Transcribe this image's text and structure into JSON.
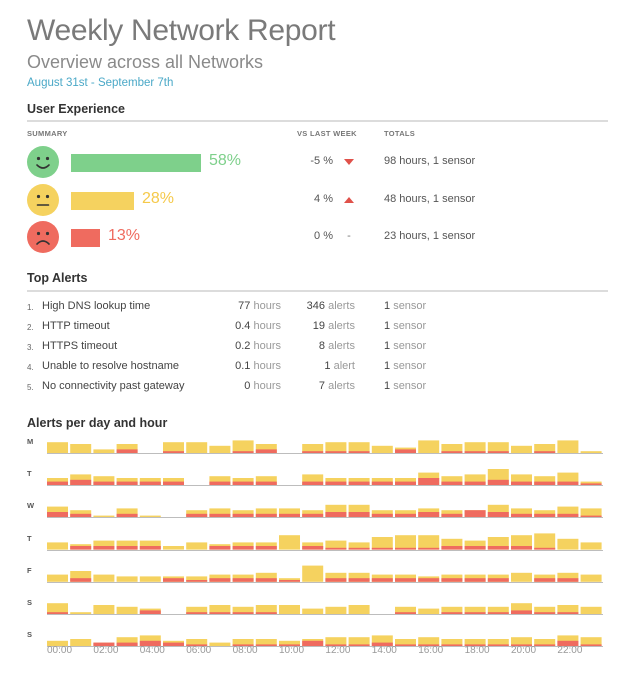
{
  "header": {
    "title": "Weekly Network Report",
    "subtitle": "Overview across all Networks",
    "date_range": "August 31st - September 7th"
  },
  "user_experience": {
    "section_title": "User Experience",
    "columns": {
      "summary": "SUMMARY",
      "vs_last_week": "VS LAST WEEK",
      "totals": "TOTALS"
    },
    "rows": [
      {
        "face": "happy-face-icon",
        "percent": 58,
        "percent_label": "58%",
        "color": "#7ed08b",
        "text_color": "#7ed08b",
        "change": "-5 %",
        "trend": "down",
        "totals": "98 hours, 1 sensor"
      },
      {
        "face": "neutral-face-icon",
        "percent": 28,
        "percent_label": "28%",
        "color": "#f5d25f",
        "text_color": "#f5c94a",
        "change": "4 %",
        "trend": "up",
        "totals": "48 hours, 1 sensor"
      },
      {
        "face": "sad-face-icon",
        "percent": 13,
        "percent_label": "13%",
        "color": "#ef6b5f",
        "text_color": "#ef6b5f",
        "change": "0 %",
        "trend": "flat",
        "trend_label": "-",
        "totals": "23 hours, 1 sensor"
      }
    ],
    "trend_colors": {
      "down": "#e0514a",
      "up": "#e0514a"
    }
  },
  "top_alerts": {
    "section_title": "Top Alerts",
    "rows": [
      {
        "num": "1.",
        "name": "High DNS lookup time",
        "hours_value": "77",
        "hours_unit": "hours",
        "alerts_value": "346",
        "alerts_unit": "alerts",
        "sensor_value": "1",
        "sensor_unit": "sensor"
      },
      {
        "num": "2.",
        "name": "HTTP timeout",
        "hours_value": "0.4",
        "hours_unit": "hours",
        "alerts_value": "19",
        "alerts_unit": "alerts",
        "sensor_value": "1",
        "sensor_unit": "sensor"
      },
      {
        "num": "3.",
        "name": "HTTPS timeout",
        "hours_value": "0.2",
        "hours_unit": "hours",
        "alerts_value": "8",
        "alerts_unit": "alerts",
        "sensor_value": "1",
        "sensor_unit": "sensor"
      },
      {
        "num": "4.",
        "name": "Unable to resolve hostname",
        "hours_value": "0.1",
        "hours_unit": "hours",
        "alerts_value": "1",
        "alerts_unit": "alert",
        "sensor_value": "1",
        "sensor_unit": "sensor"
      },
      {
        "num": "5.",
        "name": "No connectivity past gateway",
        "hours_value": "0",
        "hours_unit": "hours",
        "alerts_value": "7",
        "alerts_unit": "alerts",
        "sensor_value": "1",
        "sensor_unit": "sensor"
      }
    ]
  },
  "alerts_chart": {
    "section_title": "Alerts per day and hour",
    "colors": {
      "yellow": "#f5d25f",
      "red": "#ef6b5f",
      "baseline": "#bdbdbd"
    },
    "hour_labels": [
      "00:00",
      "02:00",
      "04:00",
      "06:00",
      "08:00",
      "10:00",
      "12:00",
      "14:00",
      "16:00",
      "18:00",
      "20:00",
      "22:00"
    ]
  },
  "chart_data": {
    "type": "bar",
    "title": "Alerts per day and hour",
    "x": [
      "00:00",
      "01:00",
      "02:00",
      "03:00",
      "04:00",
      "05:00",
      "06:00",
      "07:00",
      "08:00",
      "09:00",
      "10:00",
      "11:00",
      "12:00",
      "13:00",
      "14:00",
      "15:00",
      "16:00",
      "17:00",
      "18:00",
      "19:00",
      "20:00",
      "21:00",
      "22:00",
      "23:00"
    ],
    "days": [
      "M",
      "T",
      "W",
      "T",
      "F",
      "S",
      "S"
    ],
    "series_note": "each cell: total alerts (yellow) and red portion, relative scale 0-10",
    "grid": false,
    "ylim": [
      0,
      10
    ],
    "rows": [
      {
        "day": "M",
        "total": [
          6,
          5,
          2,
          5,
          0,
          6,
          6,
          4,
          7,
          5,
          0,
          5,
          6,
          6,
          4,
          3,
          7,
          5,
          6,
          6,
          4,
          5,
          7,
          1
        ],
        "red": [
          0,
          0,
          0,
          2,
          0,
          1,
          0,
          0,
          1,
          2,
          0,
          1,
          1,
          1,
          0,
          2,
          0,
          1,
          1,
          1,
          0,
          1,
          0,
          0
        ]
      },
      {
        "day": "T",
        "total": [
          4,
          6,
          5,
          4,
          4,
          4,
          0,
          5,
          4,
          5,
          0,
          6,
          4,
          4,
          4,
          4,
          7,
          5,
          6,
          9,
          6,
          5,
          7,
          2
        ],
        "red": [
          2,
          3,
          2,
          2,
          2,
          2,
          0,
          2,
          2,
          2,
          0,
          2,
          2,
          2,
          2,
          2,
          4,
          2,
          2,
          3,
          2,
          2,
          2,
          1
        ]
      },
      {
        "day": "W",
        "total": [
          6,
          4,
          1,
          5,
          1,
          0,
          4,
          5,
          4,
          5,
          5,
          4,
          7,
          7,
          4,
          4,
          5,
          4,
          4,
          7,
          5,
          4,
          6,
          5
        ],
        "red": [
          3,
          2,
          0,
          2,
          0,
          0,
          2,
          2,
          2,
          2,
          2,
          2,
          3,
          3,
          2,
          2,
          3,
          2,
          4,
          3,
          2,
          2,
          2,
          1
        ]
      },
      {
        "day": "T",
        "total": [
          4,
          3,
          5,
          5,
          5,
          2,
          4,
          3,
          4,
          4,
          8,
          4,
          5,
          4,
          7,
          8,
          8,
          6,
          5,
          7,
          8,
          9,
          6,
          4
        ],
        "red": [
          0,
          2,
          2,
          2,
          2,
          0,
          0,
          2,
          2,
          2,
          0,
          2,
          1,
          1,
          1,
          1,
          1,
          2,
          2,
          2,
          2,
          1,
          0,
          0
        ]
      },
      {
        "day": "F",
        "total": [
          4,
          6,
          4,
          3,
          3,
          3,
          3,
          4,
          4,
          5,
          2,
          9,
          5,
          5,
          4,
          4,
          3,
          4,
          4,
          4,
          5,
          4,
          5,
          4
        ],
        "red": [
          0,
          2,
          0,
          0,
          0,
          2,
          1,
          2,
          2,
          2,
          1,
          0,
          2,
          2,
          2,
          2,
          2,
          2,
          2,
          2,
          0,
          2,
          2,
          0
        ]
      },
      {
        "day": "S",
        "total": [
          6,
          1,
          5,
          4,
          3,
          0,
          4,
          5,
          4,
          5,
          5,
          3,
          4,
          5,
          0,
          4,
          3,
          4,
          4,
          4,
          6,
          4,
          5,
          4
        ],
        "red": [
          1,
          0,
          0,
          0,
          2,
          0,
          1,
          1,
          1,
          1,
          0,
          0,
          0,
          0,
          0,
          1,
          0,
          1,
          1,
          1,
          2,
          1,
          1,
          0
        ]
      },
      {
        "day": "S",
        "total": [
          3,
          4,
          2,
          5,
          6,
          3,
          4,
          2,
          4,
          4,
          3,
          4,
          5,
          5,
          6,
          4,
          5,
          4,
          4,
          4,
          5,
          4,
          6,
          5
        ],
        "red": [
          0,
          0,
          2,
          2,
          3,
          2,
          1,
          0,
          1,
          1,
          1,
          3,
          1,
          1,
          2,
          1,
          1,
          1,
          1,
          1,
          1,
          1,
          3,
          1
        ]
      }
    ]
  }
}
